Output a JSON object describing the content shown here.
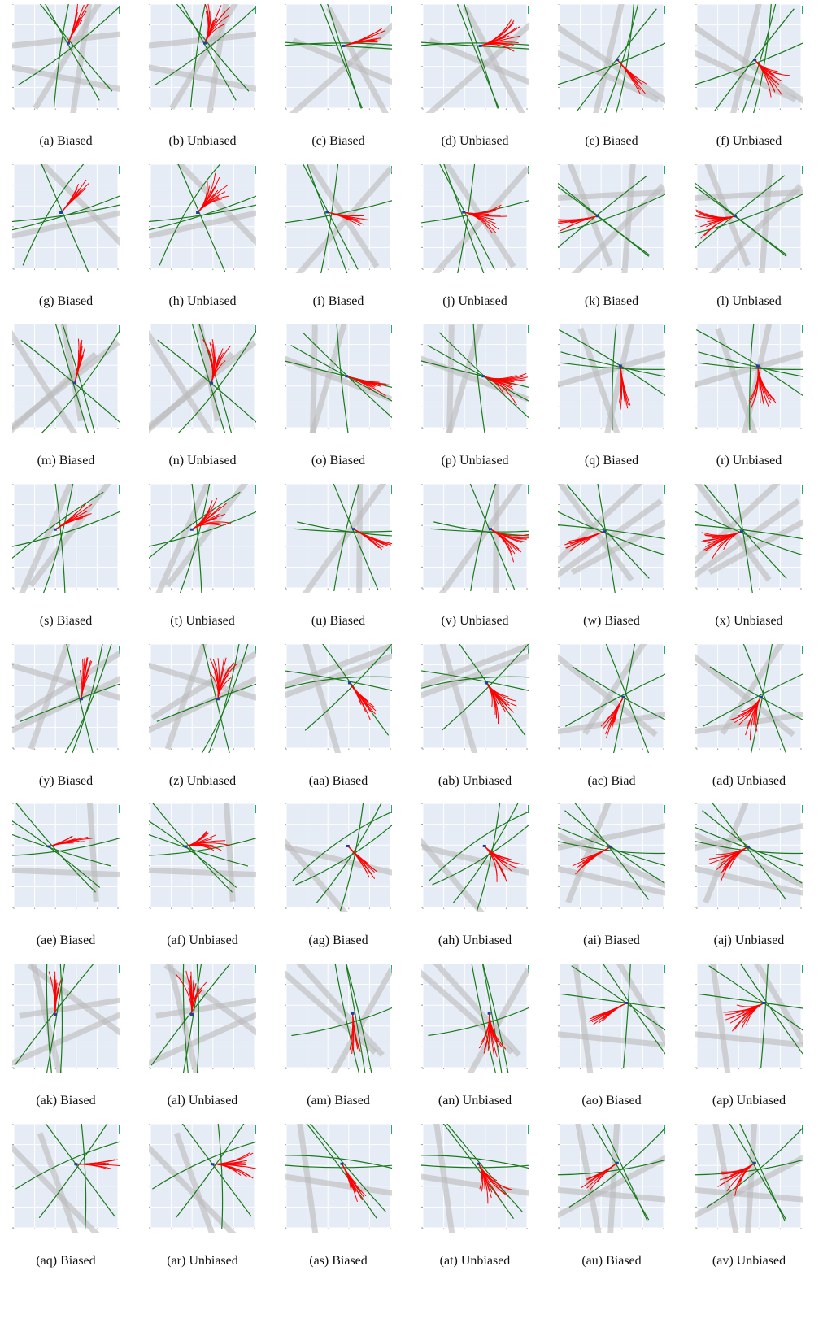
{
  "captions": [
    "(a) Biased",
    "(b) Unbiased",
    "(c) Biased",
    "(d) Unbiased",
    "(e) Biased",
    "(f) Unbiased",
    "(g) Biased",
    "(h) Unbiased",
    "(i) Biased",
    "(j) Unbiased",
    "(k) Biased",
    "(l) Unbiased",
    "(m) Biased",
    "(n) Unbiased",
    "(o) Biased",
    "(p) Unbiased",
    "(q) Biased",
    "(r) Unbiased",
    "(s) Biased",
    "(t) Unbiased",
    "(u) Biased",
    "(v) Unbiased",
    "(w) Biased",
    "(x) Unbiased",
    "(y) Biased",
    "(z) Unbiased",
    "(aa) Biased",
    "(ab) Unbiased",
    "(ac) Biad",
    "(ad) Unbiased",
    "(ae) Biased",
    "(af) Unbiased",
    "(ag) Biased",
    "(ah) Unbiased",
    "(ai) Biased",
    "(aj) Unbiased",
    "(ak) Biased",
    "(al) Unbiased",
    "(am) Biased",
    "(an) Unbiased",
    "(ao) Biased",
    "(ap) Unbiased",
    "(aq) Biased",
    "(ar) Unbiased",
    "(as) Biased",
    "(at) Unbiased",
    "(au) Biased",
    "(av) Unbiased"
  ]
}
